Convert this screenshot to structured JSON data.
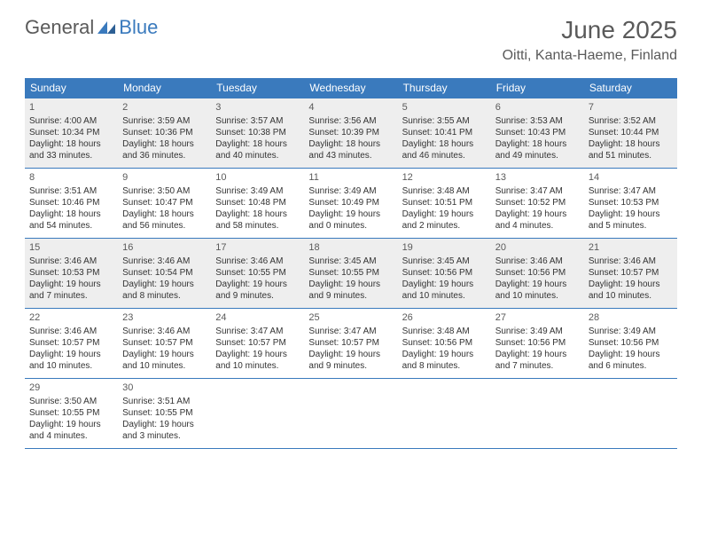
{
  "logo": {
    "general": "General",
    "blue": "Blue"
  },
  "title": "June 2025",
  "location": "Oitti, Kanta-Haeme, Finland",
  "colors": {
    "accent": "#3a7abd",
    "shaded": "#eeeeee",
    "text": "#333333",
    "header_text": "#5a5a5a"
  },
  "day_headers": [
    "Sunday",
    "Monday",
    "Tuesday",
    "Wednesday",
    "Thursday",
    "Friday",
    "Saturday"
  ],
  "weeks": [
    {
      "shaded": true,
      "days": [
        {
          "n": "1",
          "sr": "4:00 AM",
          "ss": "10:34 PM",
          "dl": "18 hours and 33 minutes."
        },
        {
          "n": "2",
          "sr": "3:59 AM",
          "ss": "10:36 PM",
          "dl": "18 hours and 36 minutes."
        },
        {
          "n": "3",
          "sr": "3:57 AM",
          "ss": "10:38 PM",
          "dl": "18 hours and 40 minutes."
        },
        {
          "n": "4",
          "sr": "3:56 AM",
          "ss": "10:39 PM",
          "dl": "18 hours and 43 minutes."
        },
        {
          "n": "5",
          "sr": "3:55 AM",
          "ss": "10:41 PM",
          "dl": "18 hours and 46 minutes."
        },
        {
          "n": "6",
          "sr": "3:53 AM",
          "ss": "10:43 PM",
          "dl": "18 hours and 49 minutes."
        },
        {
          "n": "7",
          "sr": "3:52 AM",
          "ss": "10:44 PM",
          "dl": "18 hours and 51 minutes."
        }
      ]
    },
    {
      "shaded": false,
      "days": [
        {
          "n": "8",
          "sr": "3:51 AM",
          "ss": "10:46 PM",
          "dl": "18 hours and 54 minutes."
        },
        {
          "n": "9",
          "sr": "3:50 AM",
          "ss": "10:47 PM",
          "dl": "18 hours and 56 minutes."
        },
        {
          "n": "10",
          "sr": "3:49 AM",
          "ss": "10:48 PM",
          "dl": "18 hours and 58 minutes."
        },
        {
          "n": "11",
          "sr": "3:49 AM",
          "ss": "10:49 PM",
          "dl": "19 hours and 0 minutes."
        },
        {
          "n": "12",
          "sr": "3:48 AM",
          "ss": "10:51 PM",
          "dl": "19 hours and 2 minutes."
        },
        {
          "n": "13",
          "sr": "3:47 AM",
          "ss": "10:52 PM",
          "dl": "19 hours and 4 minutes."
        },
        {
          "n": "14",
          "sr": "3:47 AM",
          "ss": "10:53 PM",
          "dl": "19 hours and 5 minutes."
        }
      ]
    },
    {
      "shaded": true,
      "days": [
        {
          "n": "15",
          "sr": "3:46 AM",
          "ss": "10:53 PM",
          "dl": "19 hours and 7 minutes."
        },
        {
          "n": "16",
          "sr": "3:46 AM",
          "ss": "10:54 PM",
          "dl": "19 hours and 8 minutes."
        },
        {
          "n": "17",
          "sr": "3:46 AM",
          "ss": "10:55 PM",
          "dl": "19 hours and 9 minutes."
        },
        {
          "n": "18",
          "sr": "3:45 AM",
          "ss": "10:55 PM",
          "dl": "19 hours and 9 minutes."
        },
        {
          "n": "19",
          "sr": "3:45 AM",
          "ss": "10:56 PM",
          "dl": "19 hours and 10 minutes."
        },
        {
          "n": "20",
          "sr": "3:46 AM",
          "ss": "10:56 PM",
          "dl": "19 hours and 10 minutes."
        },
        {
          "n": "21",
          "sr": "3:46 AM",
          "ss": "10:57 PM",
          "dl": "19 hours and 10 minutes."
        }
      ]
    },
    {
      "shaded": false,
      "days": [
        {
          "n": "22",
          "sr": "3:46 AM",
          "ss": "10:57 PM",
          "dl": "19 hours and 10 minutes."
        },
        {
          "n": "23",
          "sr": "3:46 AM",
          "ss": "10:57 PM",
          "dl": "19 hours and 10 minutes."
        },
        {
          "n": "24",
          "sr": "3:47 AM",
          "ss": "10:57 PM",
          "dl": "19 hours and 10 minutes."
        },
        {
          "n": "25",
          "sr": "3:47 AM",
          "ss": "10:57 PM",
          "dl": "19 hours and 9 minutes."
        },
        {
          "n": "26",
          "sr": "3:48 AM",
          "ss": "10:56 PM",
          "dl": "19 hours and 8 minutes."
        },
        {
          "n": "27",
          "sr": "3:49 AM",
          "ss": "10:56 PM",
          "dl": "19 hours and 7 minutes."
        },
        {
          "n": "28",
          "sr": "3:49 AM",
          "ss": "10:56 PM",
          "dl": "19 hours and 6 minutes."
        }
      ]
    },
    {
      "shaded": false,
      "days": [
        {
          "n": "29",
          "sr": "3:50 AM",
          "ss": "10:55 PM",
          "dl": "19 hours and 4 minutes."
        },
        {
          "n": "30",
          "sr": "3:51 AM",
          "ss": "10:55 PM",
          "dl": "19 hours and 3 minutes."
        },
        null,
        null,
        null,
        null,
        null
      ]
    }
  ],
  "labels": {
    "sunrise": "Sunrise:",
    "sunset": "Sunset:",
    "daylight": "Daylight:"
  }
}
